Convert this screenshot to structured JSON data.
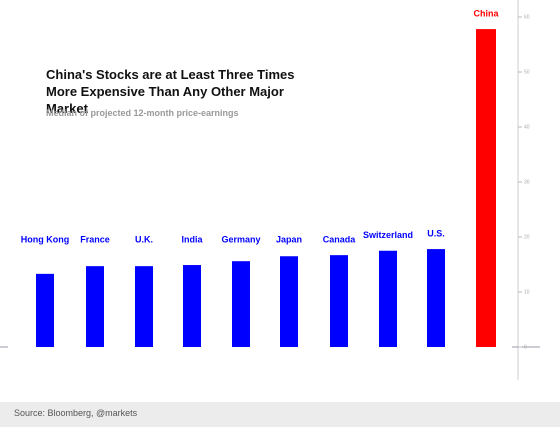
{
  "chart_data": {
    "type": "bar",
    "title": "China's Stocks are at Least Three Times More Expensive Than Any Other Major Market",
    "subtitle": "Median of projected 12-month price-earnings",
    "source": "Source: Bloomberg, @markets",
    "categories": [
      "Hong Kong",
      "France",
      "U.K.",
      "India",
      "Germany",
      "Japan",
      "Canada",
      "Switzerland",
      "U.S.",
      "China"
    ],
    "values": [
      13.3,
      14.7,
      14.7,
      14.9,
      15.6,
      16.5,
      16.7,
      17.5,
      17.8,
      57.8
    ],
    "colors": [
      "#0000ff",
      "#0000ff",
      "#0000ff",
      "#0000ff",
      "#0000ff",
      "#0000ff",
      "#0000ff",
      "#0000ff",
      "#0000ff",
      "#ff0000"
    ],
    "ylim": [
      0,
      60
    ],
    "yticks": [
      0,
      10,
      20,
      30,
      40,
      50,
      60
    ],
    "grid": false
  }
}
